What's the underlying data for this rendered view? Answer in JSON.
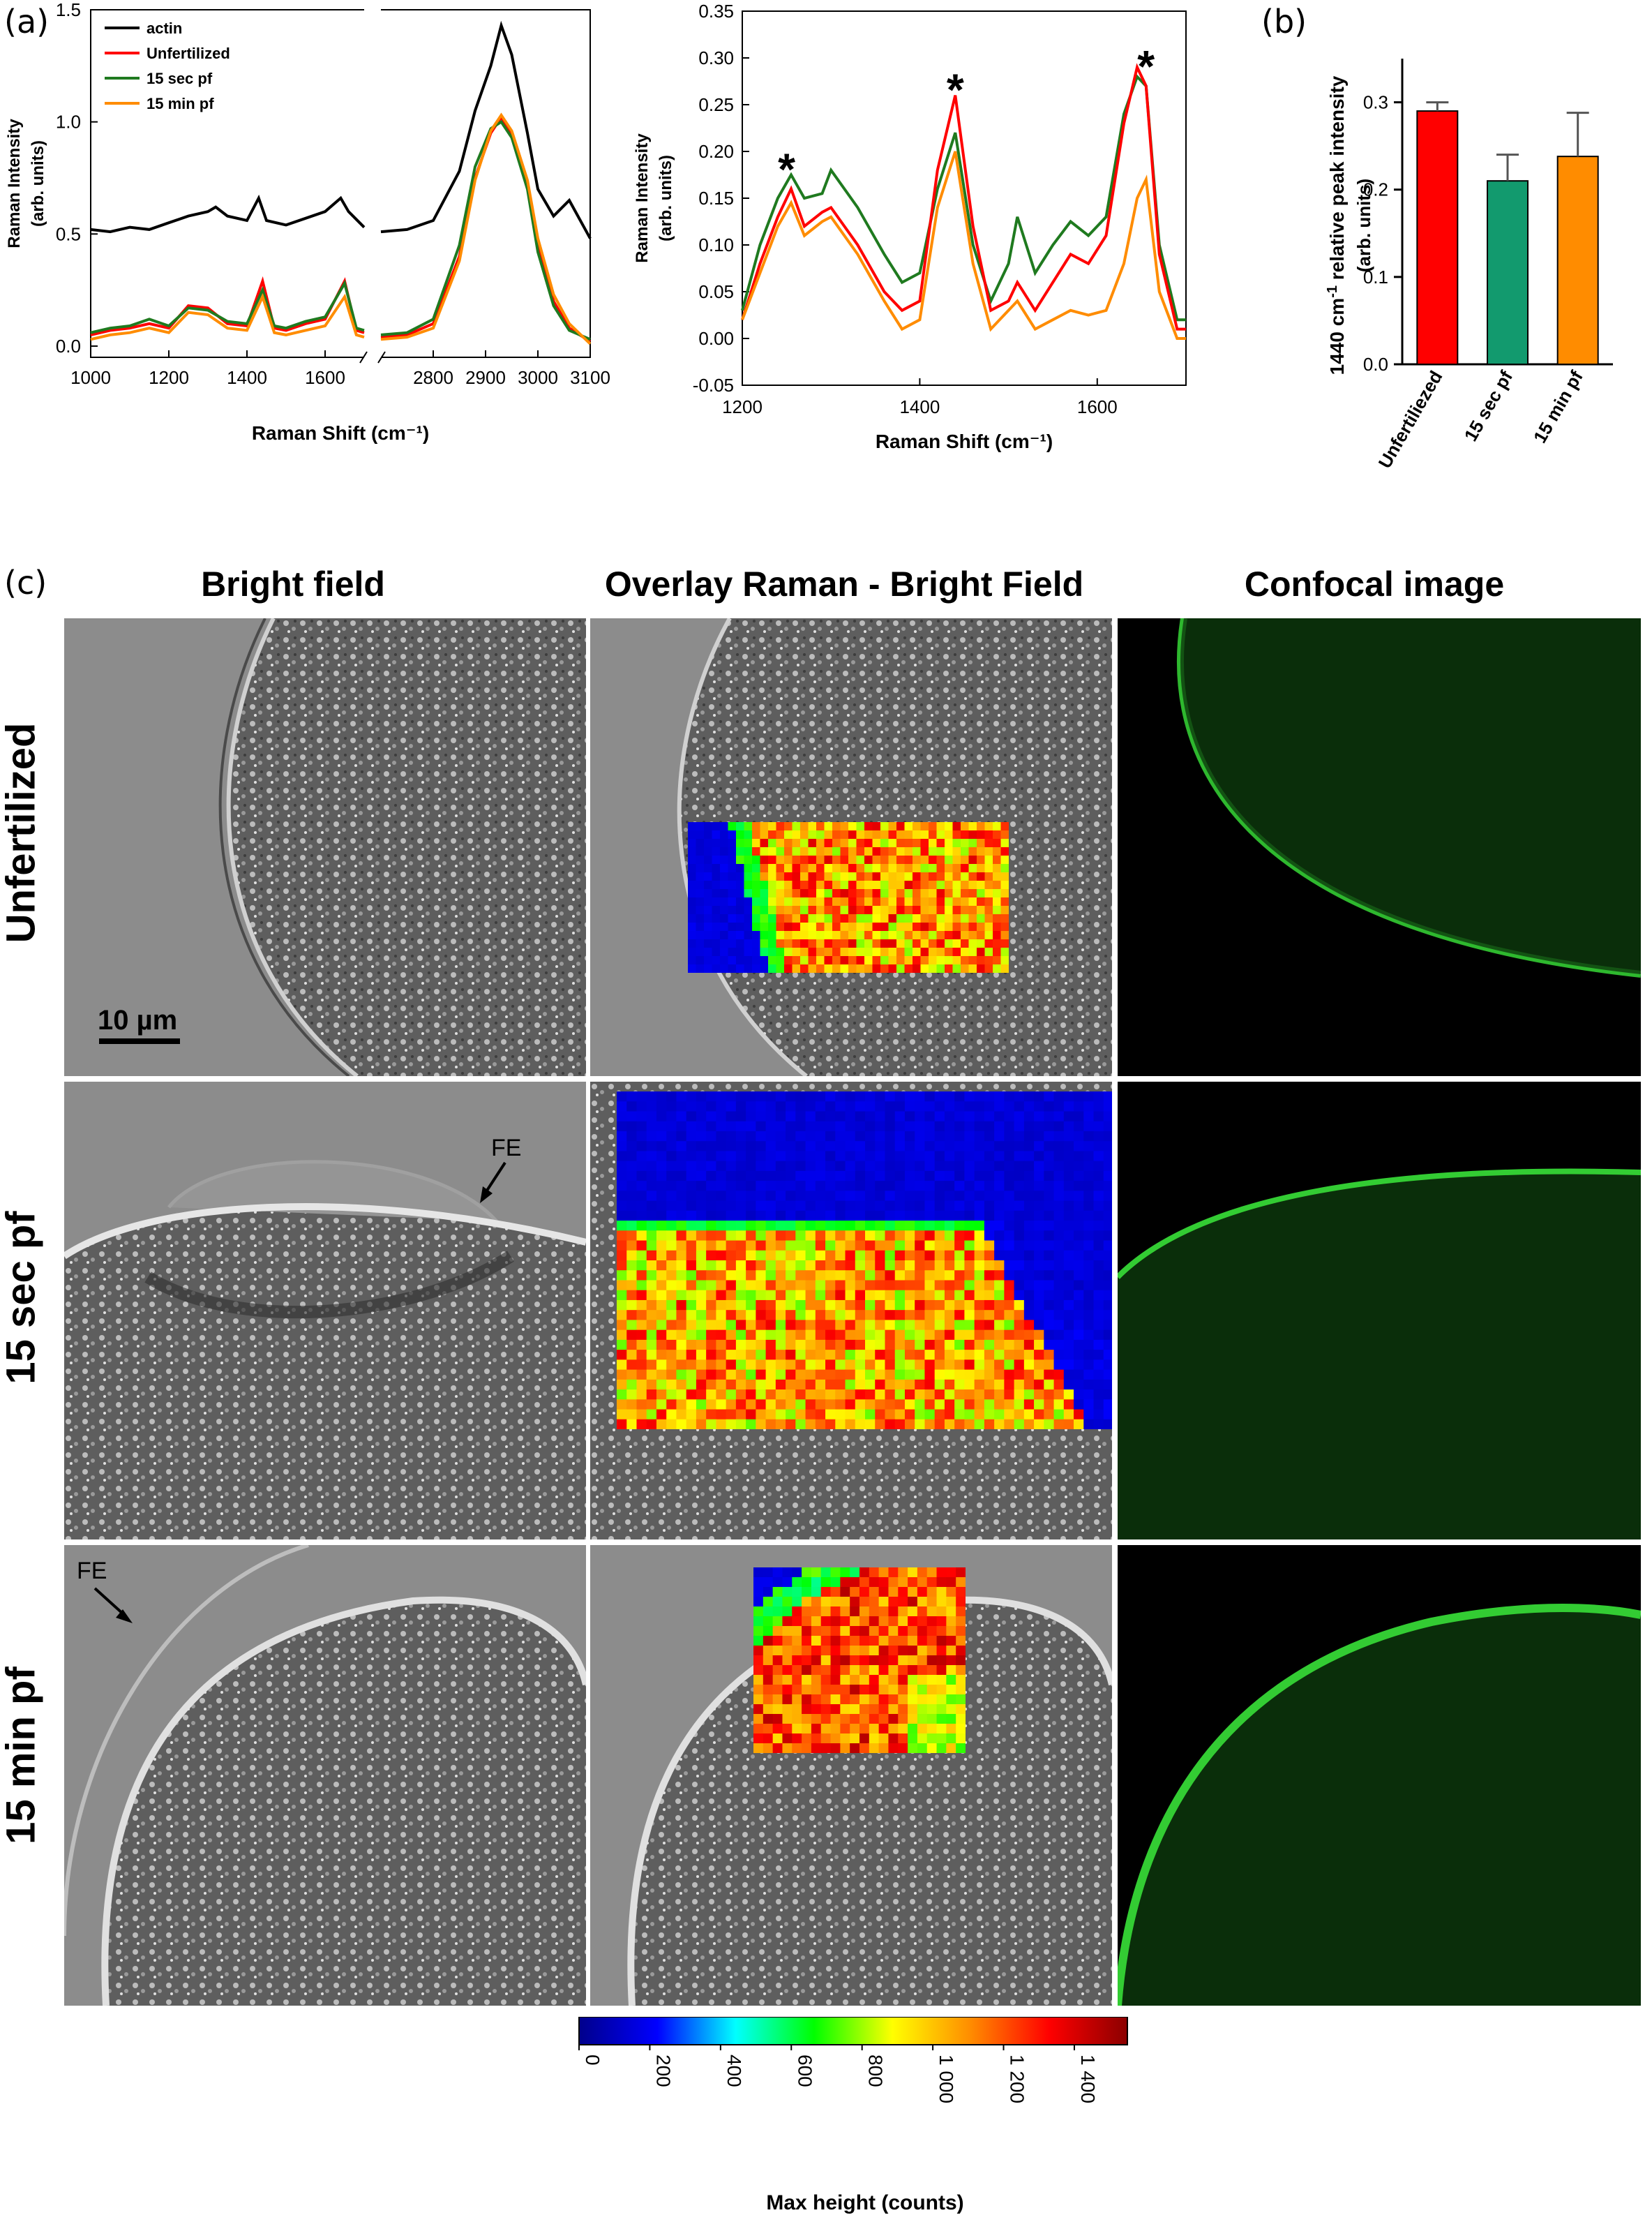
{
  "panels": {
    "a": "(a)",
    "b": "(b)",
    "c": "(c)"
  },
  "chart_data": [
    {
      "type": "line",
      "panel": "a-left",
      "xlabel": "Raman Shift (cm⁻¹)",
      "ylabel_line1": "Raman Intensity",
      "ylabel_line2": "(arb. units)",
      "axis_break": [
        1700,
        2700
      ],
      "xticks": [
        1000,
        1200,
        1400,
        1600,
        2800,
        2900,
        3000,
        3100
      ],
      "yticks": [
        "0.0",
        "0.5",
        "1.0",
        "1.5"
      ],
      "ylim": [
        -0.05,
        1.5
      ],
      "legend_placement": "top-left",
      "series": [
        {
          "name": "actin",
          "color": "#000000",
          "x": [
            1000,
            1050,
            1100,
            1150,
            1200,
            1250,
            1300,
            1320,
            1350,
            1400,
            1430,
            1450,
            1500,
            1550,
            1600,
            1640,
            1660,
            1700,
            2700,
            2750,
            2800,
            2850,
            2880,
            2910,
            2930,
            2950,
            2980,
            3000,
            3030,
            3060,
            3100
          ],
          "y": [
            0.52,
            0.51,
            0.53,
            0.52,
            0.55,
            0.58,
            0.6,
            0.62,
            0.58,
            0.56,
            0.66,
            0.56,
            0.54,
            0.57,
            0.6,
            0.66,
            0.6,
            0.53,
            0.51,
            0.52,
            0.56,
            0.78,
            1.05,
            1.25,
            1.43,
            1.3,
            0.95,
            0.7,
            0.58,
            0.65,
            0.48
          ]
        },
        {
          "name": "Unfertilized",
          "color": "#ff0000",
          "x": [
            1000,
            1050,
            1100,
            1150,
            1200,
            1250,
            1300,
            1350,
            1400,
            1440,
            1470,
            1500,
            1550,
            1600,
            1650,
            1680,
            1700,
            2700,
            2750,
            2800,
            2850,
            2880,
            2910,
            2930,
            2950,
            2980,
            3000,
            3030,
            3060,
            3100
          ],
          "y": [
            0.05,
            0.07,
            0.08,
            0.1,
            0.08,
            0.18,
            0.17,
            0.1,
            0.09,
            0.29,
            0.08,
            0.07,
            0.1,
            0.12,
            0.29,
            0.07,
            0.06,
            0.04,
            0.05,
            0.1,
            0.4,
            0.75,
            0.95,
            1.02,
            0.95,
            0.72,
            0.45,
            0.2,
            0.08,
            0.02
          ]
        },
        {
          "name": "15 sec pf",
          "color": "#1f7a1f",
          "x": [
            1000,
            1050,
            1100,
            1150,
            1200,
            1250,
            1300,
            1350,
            1400,
            1440,
            1470,
            1500,
            1550,
            1600,
            1650,
            1680,
            1700,
            2700,
            2750,
            2800,
            2850,
            2880,
            2910,
            2930,
            2950,
            2980,
            3000,
            3030,
            3060,
            3100
          ],
          "y": [
            0.06,
            0.08,
            0.09,
            0.12,
            0.09,
            0.17,
            0.16,
            0.11,
            0.1,
            0.25,
            0.09,
            0.08,
            0.11,
            0.13,
            0.28,
            0.08,
            0.07,
            0.05,
            0.06,
            0.12,
            0.45,
            0.8,
            0.97,
            1.0,
            0.93,
            0.7,
            0.42,
            0.18,
            0.07,
            0.03
          ]
        },
        {
          "name": "15 min pf",
          "color": "#ff8c00",
          "x": [
            1000,
            1050,
            1100,
            1150,
            1200,
            1250,
            1300,
            1350,
            1400,
            1440,
            1470,
            1500,
            1550,
            1600,
            1650,
            1680,
            1700,
            2700,
            2750,
            2800,
            2850,
            2880,
            2910,
            2930,
            2950,
            2980,
            3000,
            3030,
            3060,
            3100
          ],
          "y": [
            0.03,
            0.05,
            0.06,
            0.08,
            0.06,
            0.15,
            0.14,
            0.08,
            0.07,
            0.22,
            0.06,
            0.05,
            0.07,
            0.09,
            0.22,
            0.05,
            0.04,
            0.03,
            0.04,
            0.08,
            0.38,
            0.74,
            0.96,
            1.03,
            0.96,
            0.74,
            0.48,
            0.23,
            0.1,
            0.01
          ]
        }
      ]
    },
    {
      "type": "line",
      "panel": "a-right",
      "xlabel": "Raman Shift (cm⁻¹)",
      "ylabel_line1": "Raman Intensity",
      "ylabel_line2": "(arb. units)",
      "xlim": [
        1200,
        1700
      ],
      "ylim": [
        -0.05,
        0.35
      ],
      "xticks": [
        1200,
        1400,
        1600
      ],
      "yticks": [
        "-0.05",
        "0.00",
        "0.05",
        "0.10",
        "0.15",
        "0.20",
        "0.25",
        "0.30",
        "0.35"
      ],
      "annotations": [
        {
          "text": "*",
          "x": 1250,
          "y": 0.19
        },
        {
          "text": "*",
          "x": 1440,
          "y": 0.275
        },
        {
          "text": "*",
          "x": 1655,
          "y": 0.3
        }
      ],
      "series": [
        {
          "name": "15 sec pf",
          "color": "#1f7a1f",
          "x": [
            1200,
            1220,
            1240,
            1255,
            1270,
            1290,
            1300,
            1330,
            1360,
            1380,
            1400,
            1420,
            1440,
            1460,
            1480,
            1500,
            1510,
            1530,
            1550,
            1570,
            1590,
            1610,
            1630,
            1645,
            1655,
            1670,
            1690,
            1700
          ],
          "y": [
            0.03,
            0.1,
            0.15,
            0.175,
            0.15,
            0.155,
            0.18,
            0.14,
            0.09,
            0.06,
            0.07,
            0.16,
            0.22,
            0.1,
            0.04,
            0.08,
            0.13,
            0.07,
            0.1,
            0.125,
            0.11,
            0.13,
            0.24,
            0.28,
            0.27,
            0.1,
            0.02,
            0.02
          ]
        },
        {
          "name": "Unfertilized",
          "color": "#ff0000",
          "x": [
            1200,
            1220,
            1240,
            1255,
            1270,
            1290,
            1300,
            1330,
            1360,
            1380,
            1400,
            1420,
            1440,
            1460,
            1480,
            1500,
            1510,
            1530,
            1550,
            1570,
            1590,
            1610,
            1630,
            1645,
            1655,
            1670,
            1690,
            1700
          ],
          "y": [
            0.02,
            0.08,
            0.13,
            0.16,
            0.12,
            0.135,
            0.14,
            0.1,
            0.05,
            0.03,
            0.04,
            0.18,
            0.26,
            0.12,
            0.03,
            0.04,
            0.06,
            0.03,
            0.06,
            0.09,
            0.08,
            0.11,
            0.23,
            0.29,
            0.27,
            0.09,
            0.01,
            0.01
          ]
        },
        {
          "name": "15 min pf",
          "color": "#ff8c00",
          "x": [
            1200,
            1220,
            1240,
            1255,
            1270,
            1290,
            1300,
            1330,
            1360,
            1380,
            1400,
            1420,
            1440,
            1460,
            1480,
            1500,
            1510,
            1530,
            1550,
            1570,
            1590,
            1610,
            1630,
            1645,
            1655,
            1670,
            1690,
            1700
          ],
          "y": [
            0.02,
            0.07,
            0.12,
            0.145,
            0.11,
            0.125,
            0.13,
            0.09,
            0.04,
            0.01,
            0.02,
            0.14,
            0.2,
            0.08,
            0.01,
            0.03,
            0.04,
            0.01,
            0.02,
            0.03,
            0.025,
            0.03,
            0.08,
            0.15,
            0.17,
            0.05,
            0.0,
            0.0
          ]
        }
      ]
    },
    {
      "type": "bar",
      "panel": "b",
      "categories": [
        "Unfertiliezed",
        "15 sec pf",
        "15 min pf"
      ],
      "values": [
        0.29,
        0.21,
        0.238
      ],
      "errors": [
        0.01,
        0.03,
        0.05
      ],
      "colors": [
        "#ff0000",
        "#129a6e",
        "#ff8c00"
      ],
      "ylim": [
        0.0,
        0.35
      ],
      "yticks": [
        "0.0",
        "0.1",
        "0.2",
        "0.3"
      ],
      "ylabel_line1": "1440 cm",
      "ylabel_sup": "-1",
      "ylabel_line1b": " relative peak intensity",
      "ylabel_line2": "(arb. units)"
    }
  ],
  "figure_c": {
    "column_titles": [
      "Bright field",
      "Overlay Raman - Bright Field",
      "Confocal image"
    ],
    "row_titles": [
      "Unfertilized",
      "15 sec pf",
      "15 min pf"
    ],
    "scale_bar_label": "10 µm",
    "fe_label": "FE",
    "colorbar": {
      "label": "Max height (counts)",
      "ticks": [
        "0",
        "200",
        "400",
        "600",
        "800",
        "1 000",
        "1 200",
        "1 400"
      ],
      "tick_values": [
        0,
        200,
        400,
        600,
        800,
        1000,
        1200,
        1400
      ],
      "max": 1550,
      "colors": [
        "#00008b",
        "#0000ff",
        "#00ffff",
        "#00ff00",
        "#ffff00",
        "#ff8c00",
        "#ff0000",
        "#8b0000"
      ]
    }
  }
}
